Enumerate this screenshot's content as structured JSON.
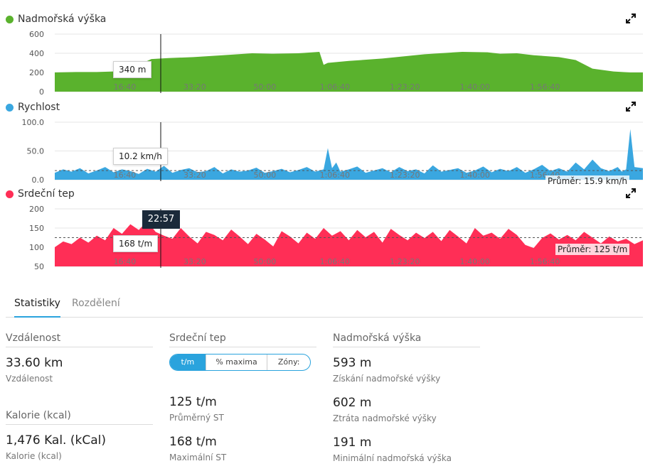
{
  "colors": {
    "elevation": "#5ab22d",
    "speed": "#3aa7e0",
    "heart": "#ff2e56",
    "accent": "#2aa3dd"
  },
  "x_ticks": [
    "16:40",
    "33:20",
    "50:00",
    "1:06:40",
    "1:23:20",
    "1:40:00",
    "1:56:40"
  ],
  "elevation": {
    "title": "Nadmořská výška",
    "y_ticks": [
      "600",
      "400",
      "200",
      "0"
    ],
    "tooltip": "340 m",
    "chart_data": {
      "type": "area",
      "x_unit": "minutes",
      "ylim": [
        0,
        600
      ],
      "x": [
        0,
        5,
        10,
        14,
        17,
        20,
        23,
        27,
        33,
        40,
        47,
        52,
        58,
        63,
        64,
        65,
        70,
        78,
        88,
        97,
        103,
        106,
        110,
        114,
        120,
        124,
        128,
        133,
        137,
        140
      ],
      "y": [
        200,
        205,
        205,
        210,
        215,
        280,
        340,
        350,
        360,
        380,
        400,
        395,
        400,
        415,
        280,
        300,
        320,
        345,
        390,
        415,
        410,
        395,
        400,
        380,
        360,
        330,
        240,
        210,
        200,
        200
      ]
    }
  },
  "speed": {
    "title": "Rychlost",
    "y_ticks": [
      "100.0",
      "50.0",
      "0.0"
    ],
    "tooltip": "10.2 km/h",
    "avg_label": "Průměr: 15.9 km/h",
    "chart_data": {
      "type": "area",
      "ylim": [
        0,
        100
      ],
      "average": 15.9,
      "x": [
        0,
        2,
        4,
        6,
        8,
        10,
        12,
        14,
        16,
        18,
        20,
        22,
        24,
        26,
        28,
        30,
        32,
        34,
        36,
        38,
        40,
        42,
        44,
        46,
        48,
        50,
        52,
        54,
        56,
        58,
        60,
        62,
        64,
        65,
        66,
        67,
        68,
        70,
        72,
        74,
        76,
        78,
        80,
        82,
        84,
        86,
        88,
        90,
        92,
        94,
        96,
        98,
        100,
        102,
        104,
        106,
        108,
        110,
        112,
        114,
        116,
        118,
        120,
        122,
        124,
        126,
        128,
        130,
        132,
        134,
        135,
        136,
        137,
        138,
        140
      ],
      "y": [
        12,
        18,
        14,
        20,
        11,
        16,
        22,
        13,
        18,
        15,
        10,
        19,
        14,
        24,
        12,
        17,
        20,
        13,
        15,
        22,
        11,
        18,
        14,
        16,
        21,
        12,
        15,
        19,
        13,
        17,
        22,
        14,
        18,
        55,
        20,
        30,
        14,
        18,
        23,
        12,
        16,
        20,
        13,
        22,
        15,
        18,
        11,
        25,
        14,
        17,
        20,
        12,
        16,
        23,
        13,
        19,
        15,
        22,
        12,
        18,
        26,
        15,
        20,
        14,
        30,
        18,
        35,
        20,
        15,
        22,
        14,
        18,
        88,
        22,
        20
      ]
    }
  },
  "heart": {
    "title": "Srdeční tep",
    "y_ticks": [
      "200",
      "150",
      "100",
      "50"
    ],
    "tooltip": "168 t/m",
    "time": "22:57",
    "avg_label": "Průměr: 125 t/m",
    "chart_data": {
      "type": "area",
      "ylim": [
        50,
        200
      ],
      "average": 125,
      "x": [
        0,
        2,
        4,
        6,
        8,
        10,
        12,
        14,
        16,
        18,
        20,
        22,
        24,
        26,
        28,
        30,
        32,
        34,
        36,
        38,
        40,
        42,
        44,
        46,
        48,
        50,
        52,
        54,
        56,
        58,
        60,
        62,
        64,
        66,
        68,
        70,
        72,
        74,
        76,
        78,
        80,
        82,
        84,
        86,
        88,
        90,
        92,
        94,
        96,
        98,
        100,
        102,
        104,
        106,
        108,
        110,
        112,
        114,
        116,
        118,
        120,
        122,
        124,
        126,
        128,
        130,
        132,
        134,
        136,
        138,
        140
      ],
      "y": [
        100,
        115,
        108,
        125,
        112,
        130,
        118,
        150,
        135,
        160,
        145,
        168,
        140,
        130,
        122,
        150,
        128,
        110,
        140,
        132,
        118,
        146,
        128,
        108,
        135,
        120,
        102,
        142,
        128,
        110,
        138,
        122,
        150,
        130,
        142,
        118,
        145,
        126,
        140,
        112,
        148,
        132,
        118,
        138,
        124,
        140,
        116,
        145,
        128,
        110,
        150,
        130,
        138,
        122,
        148,
        132,
        106,
        98,
        124,
        136,
        120,
        132,
        118,
        140,
        125,
        110,
        128,
        115,
        122,
        108,
        118
      ]
    }
  },
  "tabs": [
    "Statistiky",
    "Rozdělení"
  ],
  "stats": {
    "distance": {
      "title": "Vzdálenost",
      "value": "33.60 km",
      "label": "Vzdálenost"
    },
    "calories": {
      "title": "Kalorie (kcal)",
      "value": "1,476 Kal. (kCal)",
      "label": "Kalorie (kcal)"
    },
    "heart": {
      "title": "Srdeční tep",
      "segments": [
        "t/m",
        "% maxima",
        "Zóny:"
      ],
      "avg_value": "125 t/m",
      "avg_label": "Průměrný ST",
      "max_value": "168 t/m",
      "max_label": "Maximální ST"
    },
    "elevation": {
      "title": "Nadmořská výška",
      "gain_value": "593 m",
      "gain_label": "Získání nadmořské výšky",
      "loss_value": "602 m",
      "loss_label": "Ztráta nadmořské výšky",
      "min_value": "191 m",
      "min_label": "Minimální nadmořská výška"
    }
  }
}
